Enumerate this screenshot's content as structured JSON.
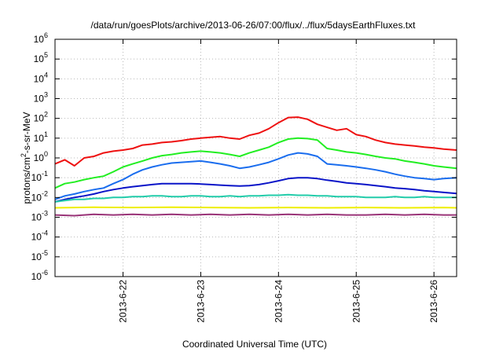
{
  "chart_data": {
    "type": "line",
    "title": "/data/run/goesPlots/archive/2013-06-26/07:00/flux/../flux/5daysEarthFluxes.txt",
    "xlabel": "Coordinated Universal Time (UTC)",
    "ylabel": {
      "base": "protons/cm",
      "exp": "2",
      "rest": "-s-sr-MeV"
    },
    "yscale": "log",
    "ylim": [
      1e-06,
      1000000.0
    ],
    "y_ticks": [
      {
        "value": 1e-06,
        "base": "10",
        "exp": "-6"
      },
      {
        "value": 1e-05,
        "base": "10",
        "exp": "-5"
      },
      {
        "value": 0.0001,
        "base": "10",
        "exp": "-4"
      },
      {
        "value": 0.001,
        "base": "10",
        "exp": "-3"
      },
      {
        "value": 0.01,
        "base": "10",
        "exp": "-2"
      },
      {
        "value": 0.1,
        "base": "10",
        "exp": "-1"
      },
      {
        "value": 1,
        "base": "10",
        "exp": "0"
      },
      {
        "value": 10,
        "base": "10",
        "exp": "1"
      },
      {
        "value": 100,
        "base": "10",
        "exp": "2"
      },
      {
        "value": 1000,
        "base": "10",
        "exp": "3"
      },
      {
        "value": 10000,
        "base": "10",
        "exp": "4"
      },
      {
        "value": 100000,
        "base": "10",
        "exp": "5"
      },
      {
        "value": 1000000,
        "base": "10",
        "exp": "6"
      }
    ],
    "xlim": [
      "2013-06-21 03:00",
      "2013-06-26 07:00"
    ],
    "x_ticks": [
      {
        "value": "2013-06-22",
        "label": "2013-6-22"
      },
      {
        "value": "2013-06-23",
        "label": "2013-6-23"
      },
      {
        "value": "2013-06-24",
        "label": "2013-6-24"
      },
      {
        "value": "2013-06-25",
        "label": "2013-6-25"
      },
      {
        "value": "2013-06-26",
        "label": "2013-6-26"
      }
    ],
    "grid": true,
    "legend": "none",
    "series": [
      {
        "color": "#ee1111",
        "x": [
          "2013-06-21 03:00",
          "2013-06-21 06:00",
          "2013-06-21 09:00",
          "2013-06-21 12:00",
          "2013-06-21 15:00",
          "2013-06-21 18:00",
          "2013-06-21 21:00",
          "2013-06-22 00:00",
          "2013-06-22 03:00",
          "2013-06-22 06:00",
          "2013-06-22 09:00",
          "2013-06-22 12:00",
          "2013-06-22 15:00",
          "2013-06-22 18:00",
          "2013-06-22 21:00",
          "2013-06-23 00:00",
          "2013-06-23 03:00",
          "2013-06-23 06:00",
          "2013-06-23 09:00",
          "2013-06-23 12:00",
          "2013-06-23 15:00",
          "2013-06-23 18:00",
          "2013-06-23 21:00",
          "2013-06-24 00:00",
          "2013-06-24 03:00",
          "2013-06-24 06:00",
          "2013-06-24 09:00",
          "2013-06-24 12:00",
          "2013-06-24 15:00",
          "2013-06-24 18:00",
          "2013-06-24 21:00",
          "2013-06-25 00:00",
          "2013-06-25 03:00",
          "2013-06-25 06:00",
          "2013-06-25 09:00",
          "2013-06-25 12:00",
          "2013-06-25 15:00",
          "2013-06-25 18:00",
          "2013-06-25 21:00",
          "2013-06-26 00:00",
          "2013-06-26 03:00",
          "2013-06-26 07:00"
        ],
        "y": [
          0.5,
          0.8,
          0.4,
          1.0,
          1.2,
          1.8,
          2.2,
          2.5,
          3.0,
          4.5,
          5.0,
          6.0,
          6.5,
          7.5,
          9.0,
          10,
          11,
          12,
          10,
          9,
          14,
          18,
          30,
          60,
          110,
          115,
          90,
          50,
          35,
          25,
          30,
          15,
          12,
          8,
          6,
          5,
          4.5,
          4.0,
          3.5,
          3.2,
          2.8,
          2.5
        ]
      },
      {
        "color": "#22ee22",
        "x": [
          "2013-06-21 03:00",
          "2013-06-21 06:00",
          "2013-06-21 09:00",
          "2013-06-21 12:00",
          "2013-06-21 15:00",
          "2013-06-21 18:00",
          "2013-06-21 21:00",
          "2013-06-22 00:00",
          "2013-06-22 03:00",
          "2013-06-22 06:00",
          "2013-06-22 09:00",
          "2013-06-22 12:00",
          "2013-06-22 15:00",
          "2013-06-22 18:00",
          "2013-06-22 21:00",
          "2013-06-23 00:00",
          "2013-06-23 03:00",
          "2013-06-23 06:00",
          "2013-06-23 09:00",
          "2013-06-23 12:00",
          "2013-06-23 15:00",
          "2013-06-23 18:00",
          "2013-06-23 21:00",
          "2013-06-24 00:00",
          "2013-06-24 03:00",
          "2013-06-24 06:00",
          "2013-06-24 09:00",
          "2013-06-24 12:00",
          "2013-06-24 15:00",
          "2013-06-24 18:00",
          "2013-06-24 21:00",
          "2013-06-25 00:00",
          "2013-06-25 03:00",
          "2013-06-25 06:00",
          "2013-06-25 09:00",
          "2013-06-25 12:00",
          "2013-06-25 15:00",
          "2013-06-25 18:00",
          "2013-06-25 21:00",
          "2013-06-26 00:00",
          "2013-06-26 03:00",
          "2013-06-26 07:00"
        ],
        "y": [
          0.03,
          0.05,
          0.06,
          0.08,
          0.1,
          0.12,
          0.2,
          0.35,
          0.5,
          0.7,
          1.0,
          1.3,
          1.5,
          1.8,
          2.0,
          2.2,
          2.0,
          1.8,
          1.5,
          1.2,
          1.8,
          2.5,
          3.5,
          6.0,
          9.0,
          10,
          9.5,
          8,
          3.0,
          2.5,
          2.0,
          1.8,
          1.5,
          1.2,
          1.0,
          0.9,
          0.7,
          0.6,
          0.5,
          0.4,
          0.35,
          0.3
        ]
      },
      {
        "color": "#1a6dee",
        "x": [
          "2013-06-21 03:00",
          "2013-06-21 06:00",
          "2013-06-21 09:00",
          "2013-06-21 12:00",
          "2013-06-21 15:00",
          "2013-06-21 18:00",
          "2013-06-21 21:00",
          "2013-06-22 00:00",
          "2013-06-22 03:00",
          "2013-06-22 06:00",
          "2013-06-22 09:00",
          "2013-06-22 12:00",
          "2013-06-22 15:00",
          "2013-06-22 18:00",
          "2013-06-22 21:00",
          "2013-06-23 00:00",
          "2013-06-23 03:00",
          "2013-06-23 06:00",
          "2013-06-23 09:00",
          "2013-06-23 12:00",
          "2013-06-23 15:00",
          "2013-06-23 18:00",
          "2013-06-23 21:00",
          "2013-06-24 00:00",
          "2013-06-24 03:00",
          "2013-06-24 06:00",
          "2013-06-24 09:00",
          "2013-06-24 12:00",
          "2013-06-24 15:00",
          "2013-06-24 18:00",
          "2013-06-24 21:00",
          "2013-06-25 00:00",
          "2013-06-25 03:00",
          "2013-06-25 06:00",
          "2013-06-25 09:00",
          "2013-06-25 12:00",
          "2013-06-25 15:00",
          "2013-06-25 18:00",
          "2013-06-25 21:00",
          "2013-06-26 00:00",
          "2013-06-26 03:00",
          "2013-06-26 07:00"
        ],
        "y": [
          0.008,
          0.012,
          0.015,
          0.02,
          0.025,
          0.03,
          0.05,
          0.08,
          0.15,
          0.25,
          0.35,
          0.45,
          0.55,
          0.6,
          0.65,
          0.7,
          0.6,
          0.5,
          0.4,
          0.3,
          0.35,
          0.45,
          0.6,
          0.9,
          1.4,
          1.8,
          1.6,
          1.2,
          0.5,
          0.45,
          0.4,
          0.35,
          0.3,
          0.25,
          0.2,
          0.15,
          0.12,
          0.1,
          0.09,
          0.08,
          0.09,
          0.1
        ]
      },
      {
        "color": "#0a14c8",
        "x": [
          "2013-06-21 03:00",
          "2013-06-21 06:00",
          "2013-06-21 09:00",
          "2013-06-21 12:00",
          "2013-06-21 15:00",
          "2013-06-21 18:00",
          "2013-06-21 21:00",
          "2013-06-22 00:00",
          "2013-06-22 03:00",
          "2013-06-22 06:00",
          "2013-06-22 09:00",
          "2013-06-22 12:00",
          "2013-06-22 15:00",
          "2013-06-22 18:00",
          "2013-06-22 21:00",
          "2013-06-23 00:00",
          "2013-06-23 03:00",
          "2013-06-23 06:00",
          "2013-06-23 09:00",
          "2013-06-23 12:00",
          "2013-06-23 15:00",
          "2013-06-23 18:00",
          "2013-06-23 21:00",
          "2013-06-24 00:00",
          "2013-06-24 03:00",
          "2013-06-24 06:00",
          "2013-06-24 09:00",
          "2013-06-24 12:00",
          "2013-06-24 15:00",
          "2013-06-24 18:00",
          "2013-06-24 21:00",
          "2013-06-25 00:00",
          "2013-06-25 03:00",
          "2013-06-25 06:00",
          "2013-06-25 09:00",
          "2013-06-25 12:00",
          "2013-06-25 15:00",
          "2013-06-25 18:00",
          "2013-06-25 21:00",
          "2013-06-26 00:00",
          "2013-06-26 03:00",
          "2013-06-26 07:00"
        ],
        "y": [
          0.006,
          0.008,
          0.01,
          0.012,
          0.015,
          0.02,
          0.025,
          0.03,
          0.035,
          0.04,
          0.045,
          0.05,
          0.05,
          0.05,
          0.05,
          0.048,
          0.045,
          0.042,
          0.04,
          0.038,
          0.04,
          0.045,
          0.055,
          0.07,
          0.09,
          0.1,
          0.1,
          0.09,
          0.075,
          0.065,
          0.055,
          0.05,
          0.045,
          0.04,
          0.035,
          0.03,
          0.028,
          0.025,
          0.022,
          0.02,
          0.018,
          0.016
        ]
      },
      {
        "color": "#22ccaa",
        "x": [
          "2013-06-21 03:00",
          "2013-06-21 06:00",
          "2013-06-21 09:00",
          "2013-06-21 12:00",
          "2013-06-21 15:00",
          "2013-06-21 18:00",
          "2013-06-21 21:00",
          "2013-06-22 00:00",
          "2013-06-22 03:00",
          "2013-06-22 06:00",
          "2013-06-22 09:00",
          "2013-06-22 12:00",
          "2013-06-22 15:00",
          "2013-06-22 18:00",
          "2013-06-22 21:00",
          "2013-06-23 00:00",
          "2013-06-23 03:00",
          "2013-06-23 06:00",
          "2013-06-23 09:00",
          "2013-06-23 12:00",
          "2013-06-23 15:00",
          "2013-06-23 18:00",
          "2013-06-23 21:00",
          "2013-06-24 00:00",
          "2013-06-24 03:00",
          "2013-06-24 06:00",
          "2013-06-24 09:00",
          "2013-06-24 12:00",
          "2013-06-24 15:00",
          "2013-06-24 18:00",
          "2013-06-24 21:00",
          "2013-06-25 00:00",
          "2013-06-25 03:00",
          "2013-06-25 06:00",
          "2013-06-25 09:00",
          "2013-06-25 12:00",
          "2013-06-25 15:00",
          "2013-06-25 18:00",
          "2013-06-25 21:00",
          "2013-06-26 00:00",
          "2013-06-26 03:00",
          "2013-06-26 07:00"
        ],
        "y": [
          0.006,
          0.007,
          0.008,
          0.008,
          0.009,
          0.009,
          0.01,
          0.01,
          0.011,
          0.011,
          0.012,
          0.012,
          0.011,
          0.011,
          0.012,
          0.012,
          0.011,
          0.011,
          0.012,
          0.011,
          0.012,
          0.012,
          0.013,
          0.013,
          0.014,
          0.013,
          0.013,
          0.012,
          0.012,
          0.011,
          0.011,
          0.011,
          0.01,
          0.01,
          0.01,
          0.011,
          0.01,
          0.01,
          0.011,
          0.01,
          0.01,
          0.01
        ]
      },
      {
        "color": "#eeee00",
        "x": [
          "2013-06-21 03:00",
          "2013-06-21 15:00",
          "2013-06-22 03:00",
          "2013-06-22 15:00",
          "2013-06-23 03:00",
          "2013-06-23 15:00",
          "2013-06-24 03:00",
          "2013-06-24 15:00",
          "2013-06-25 03:00",
          "2013-06-25 15:00",
          "2013-06-26 03:00",
          "2013-06-26 07:00"
        ],
        "y": [
          0.003,
          0.0032,
          0.0031,
          0.0032,
          0.0031,
          0.003,
          0.0031,
          0.003,
          0.0031,
          0.003,
          0.0031,
          0.003
        ]
      },
      {
        "color": "#993377",
        "x": [
          "2013-06-21 03:00",
          "2013-06-21 09:00",
          "2013-06-21 15:00",
          "2013-06-21 21:00",
          "2013-06-22 03:00",
          "2013-06-22 09:00",
          "2013-06-22 15:00",
          "2013-06-22 21:00",
          "2013-06-23 03:00",
          "2013-06-23 09:00",
          "2013-06-23 15:00",
          "2013-06-23 21:00",
          "2013-06-24 03:00",
          "2013-06-24 09:00",
          "2013-06-24 15:00",
          "2013-06-24 21:00",
          "2013-06-25 03:00",
          "2013-06-25 09:00",
          "2013-06-25 15:00",
          "2013-06-25 21:00",
          "2013-06-26 03:00",
          "2013-06-26 07:00"
        ],
        "y": [
          0.0013,
          0.0012,
          0.0014,
          0.0013,
          0.0014,
          0.0013,
          0.0014,
          0.0013,
          0.0014,
          0.0013,
          0.0014,
          0.0013,
          0.0014,
          0.0013,
          0.0014,
          0.0013,
          0.0013,
          0.0014,
          0.0013,
          0.0014,
          0.0013,
          0.0013
        ]
      }
    ]
  }
}
